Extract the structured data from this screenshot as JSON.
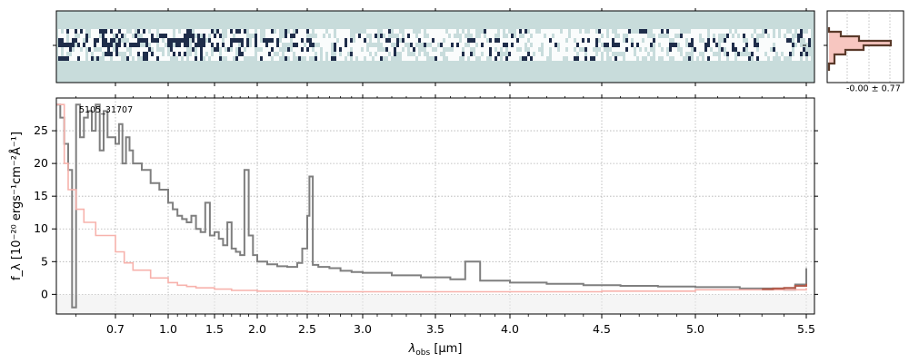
{
  "chart_data": [
    {
      "panel": "2d-spectrum",
      "type": "heatmap",
      "colormap": [
        "#c8dcdb",
        "#ffffff",
        "#0c1a3a"
      ]
    },
    {
      "panel": "profile",
      "type": "line",
      "label": "-0.00 ± 0.77",
      "colors": {
        "profile": "#5a3a2a",
        "fill": "#f7c6c0"
      }
    },
    {
      "panel": "1d-spectrum",
      "type": "line",
      "id_label": "5105_31707",
      "xlabel_main": "λ",
      "xlabel_sub": "obs",
      "xlabel_unit": " [μm]",
      "ylabel": "f_λ [10⁻²⁰ ergs⁻¹cm⁻²Å⁻¹]",
      "xticks": [
        "0.7",
        "1.0",
        "1.5",
        "2.0",
        "2.5",
        "3.0",
        "3.5",
        "4.0",
        "4.5",
        "5.0",
        "5.5"
      ],
      "xtick_values": [
        0.7,
        1.0,
        1.5,
        2.0,
        2.5,
        3.0,
        3.5,
        4.0,
        4.5,
        5.0,
        5.5
      ],
      "yticks": [
        0,
        5,
        10,
        15,
        20,
        25
      ],
      "ylim": [
        -3,
        30
      ],
      "grid": true,
      "colors": {
        "flux": "#7f7f7f",
        "error": "#f7b2ac",
        "model": "#b05a4a"
      },
      "series": [
        {
          "role": "flux",
          "x": [
            0.55,
            0.56,
            0.57,
            0.58,
            0.59,
            0.6,
            0.61,
            0.62,
            0.63,
            0.64,
            0.65,
            0.66,
            0.67,
            0.68,
            0.7,
            0.72,
            0.74,
            0.76,
            0.78,
            0.8,
            0.85,
            0.9,
            0.95,
            1.0,
            1.05,
            1.1,
            1.15,
            1.2,
            1.25,
            1.3,
            1.35,
            1.4,
            1.45,
            1.5,
            1.55,
            1.6,
            1.65,
            1.7,
            1.75,
            1.8,
            1.85,
            1.9,
            1.95,
            2.0,
            2.1,
            2.2,
            2.3,
            2.4,
            2.45,
            2.5,
            2.52,
            2.55,
            2.6,
            2.7,
            2.8,
            2.9,
            3.0,
            3.2,
            3.4,
            3.6,
            3.7,
            3.8,
            4.0,
            4.2,
            4.4,
            4.6,
            4.8,
            5.0,
            5.2,
            5.4,
            5.45,
            5.5
          ],
          "y": [
            29,
            27,
            23,
            19,
            -2,
            29,
            24,
            27,
            28,
            25,
            29,
            22,
            28,
            24,
            23,
            26,
            20,
            24,
            22,
            20,
            19,
            17,
            16,
            14,
            13,
            12,
            11.5,
            11,
            12,
            10,
            9.5,
            14,
            9,
            9.5,
            8.5,
            7.5,
            11,
            7,
            6.5,
            6,
            19,
            9,
            6,
            5,
            4.6,
            4.3,
            4.2,
            4.8,
            7,
            12,
            18,
            4.5,
            4.2,
            4.0,
            3.6,
            3.4,
            3.3,
            2.9,
            2.6,
            2.3,
            5,
            2.1,
            1.8,
            1.6,
            1.4,
            1.3,
            1.2,
            1.1,
            0.9,
            0.7,
            1.5,
            4
          ]
        },
        {
          "role": "error",
          "x": [
            0.55,
            0.57,
            0.58,
            0.6,
            0.62,
            0.65,
            0.7,
            0.75,
            0.8,
            0.9,
            1.0,
            1.1,
            1.2,
            1.3,
            1.5,
            1.7,
            2.0,
            2.5,
            3.0,
            3.5,
            4.0,
            4.5,
            5.0,
            5.5
          ],
          "y": [
            29,
            20,
            16,
            13,
            11,
            9,
            6.5,
            4.8,
            3.7,
            2.5,
            1.8,
            1.4,
            1.2,
            1.0,
            0.8,
            0.6,
            0.5,
            0.4,
            0.4,
            0.4,
            0.4,
            0.5,
            0.7,
            1.0
          ]
        },
        {
          "role": "model",
          "x": [
            5.3,
            5.35,
            5.4,
            5.45,
            5.5
          ],
          "y": [
            0.8,
            0.9,
            1.0,
            1.3,
            1.6
          ]
        }
      ]
    }
  ]
}
